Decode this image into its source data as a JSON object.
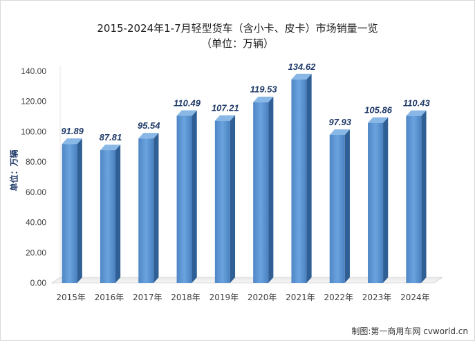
{
  "chart_data": {
    "type": "bar",
    "title": "2015-2024年1-7月轻型货车（含小卡、皮卡）市场销量一览",
    "subtitle": "（单位：万辆）",
    "ylabel": "单位：万辆",
    "xlabel": "",
    "categories": [
      "2015年",
      "2016年",
      "2017年",
      "2018年",
      "2019年",
      "2020年",
      "2021年",
      "2022年",
      "2023年",
      "2024年"
    ],
    "values": [
      91.89,
      87.81,
      95.54,
      110.49,
      107.21,
      119.53,
      134.62,
      97.93,
      105.86,
      110.43
    ],
    "data_labels": [
      "91.89",
      "87.81",
      "95.54",
      "110.49",
      "107.21",
      "119.53",
      "134.62",
      "97.93",
      "105.86",
      "110.43"
    ],
    "ylim": [
      0,
      140
    ],
    "yticks": [
      "0.00",
      "20.00",
      "40.00",
      "60.00",
      "80.00",
      "100.00",
      "120.00",
      "140.00"
    ],
    "grid": false,
    "legend": "none",
    "bar_color": "#5b9bd5"
  },
  "source": "制图:第一商用车网 cvworld.cn"
}
